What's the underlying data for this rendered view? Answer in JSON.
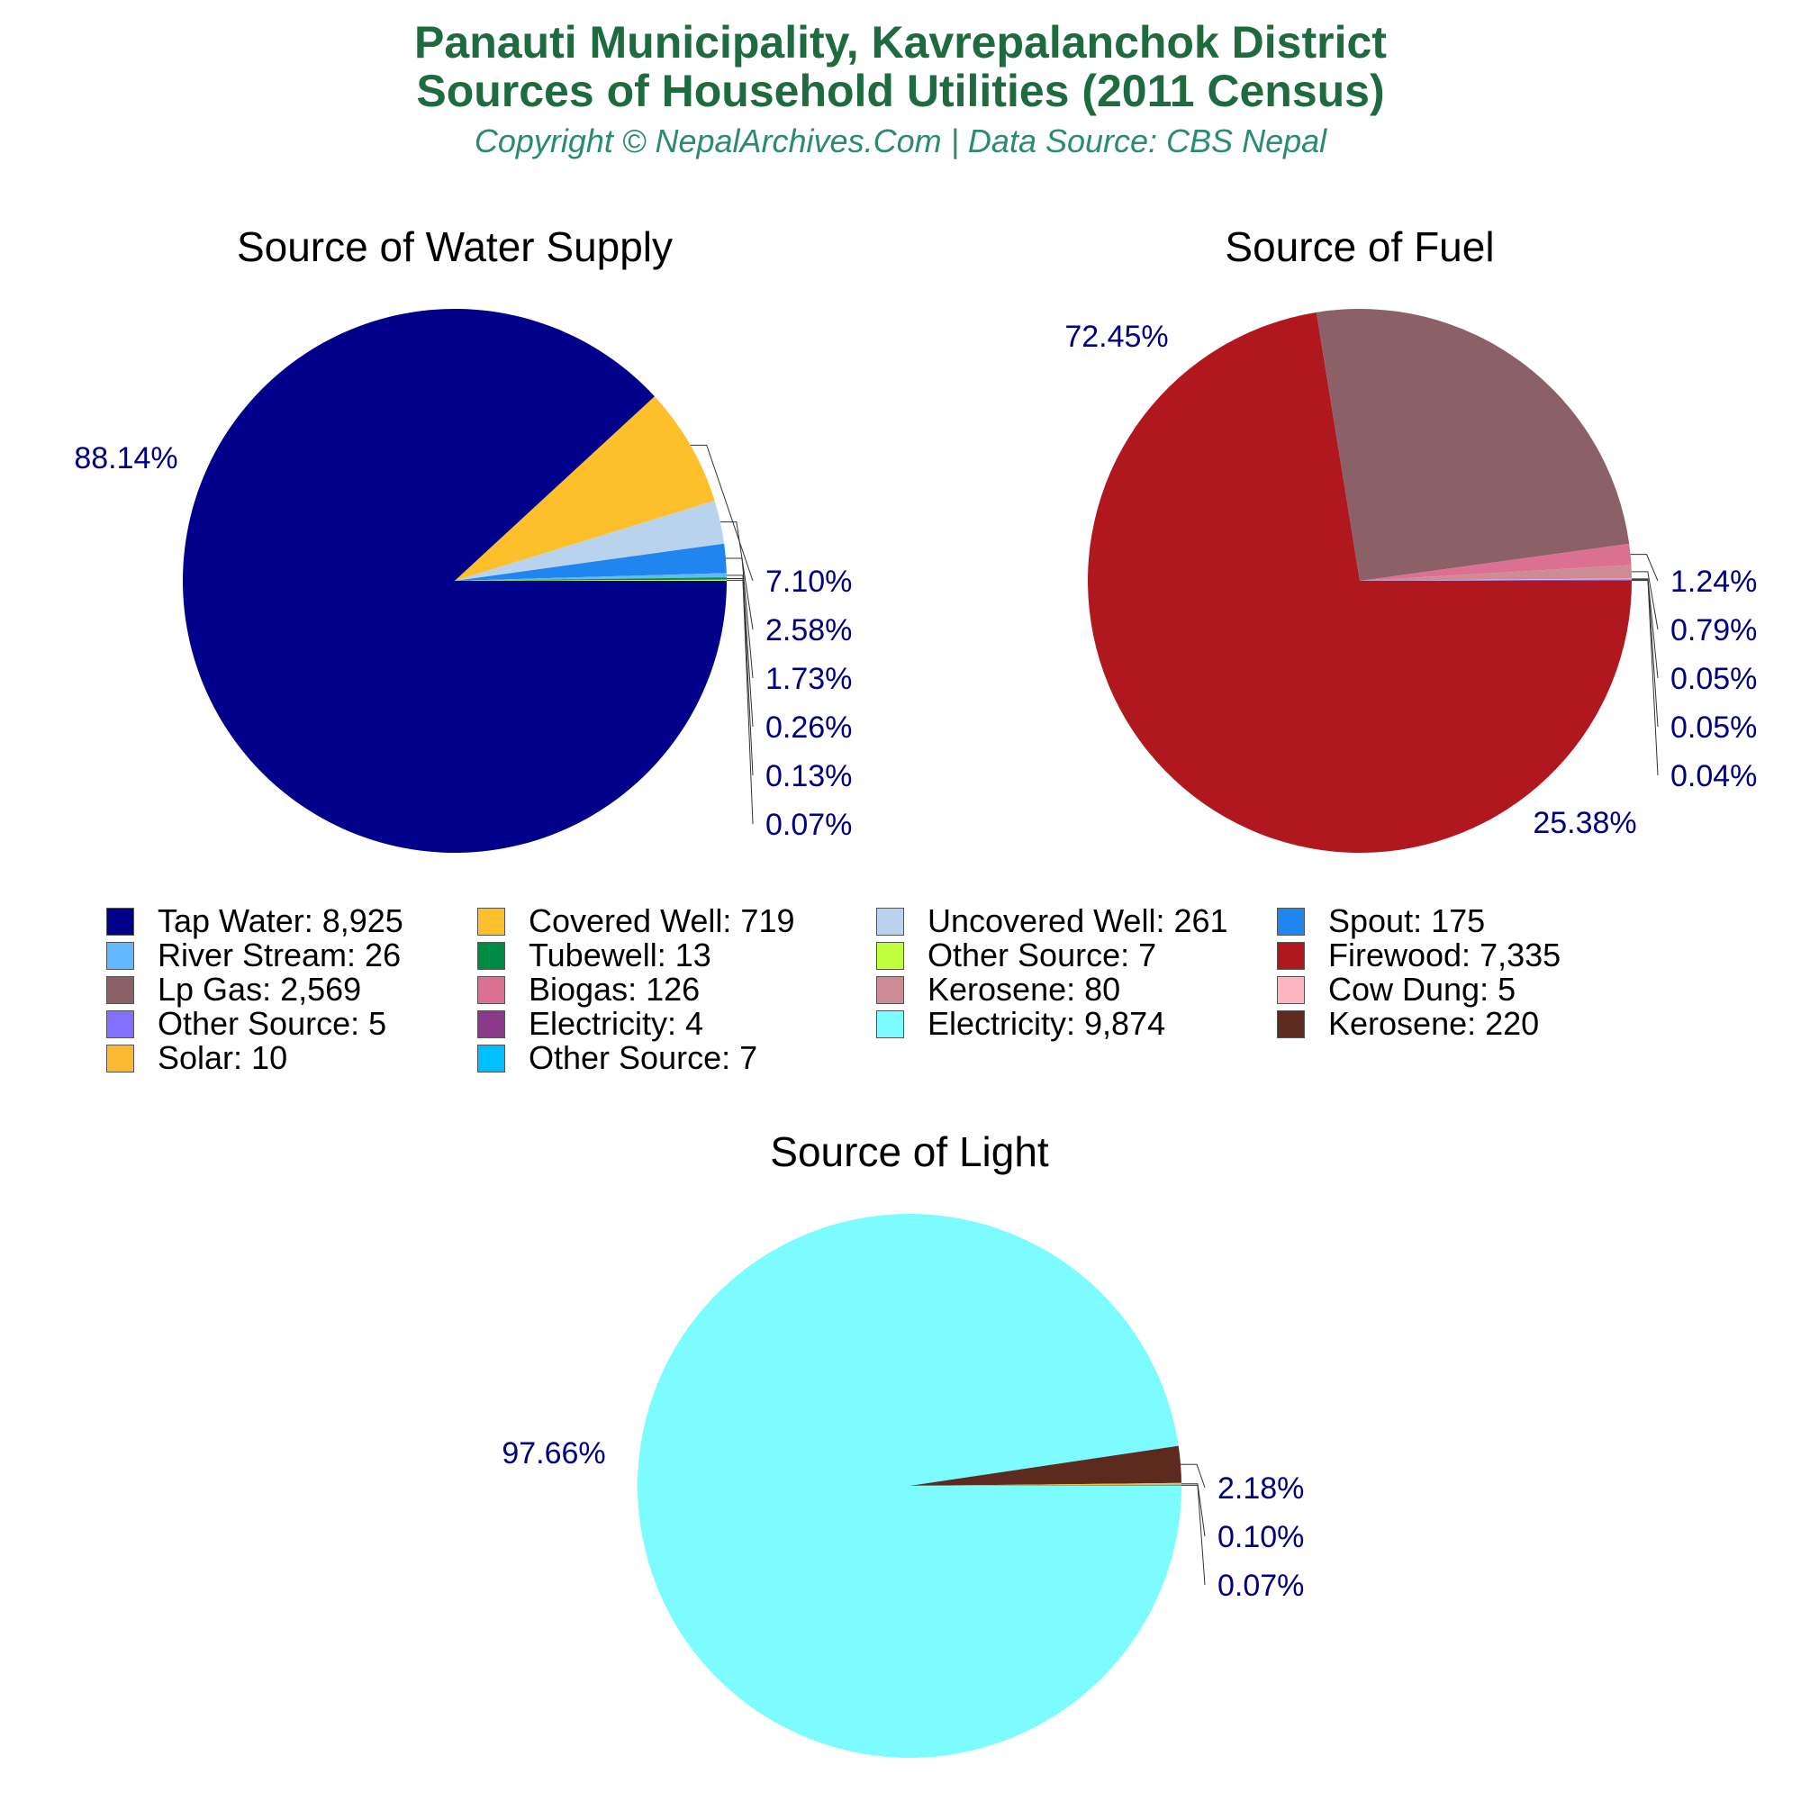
{
  "header": {
    "title_line1": "Panauti Municipality, Kavrepalanchok District",
    "title_line2": "Sources of Household Utilities (2011 Census)",
    "subtitle": "Copyright © NepalArchives.Com | Data Source: CBS Nepal"
  },
  "colors": {
    "title": "#1e6b3f",
    "subtitle": "#2a8a72",
    "percent_label": "#000080"
  },
  "chart_data": [
    {
      "type": "pie",
      "title": "Source of Water Supply",
      "slices": [
        {
          "label": "Tap Water",
          "value": 8925,
          "percent": "88.14%",
          "color": "#00008b"
        },
        {
          "label": "Covered Well",
          "value": 719,
          "percent": "7.10%",
          "color": "#fec02a"
        },
        {
          "label": "Uncovered Well",
          "value": 261,
          "percent": "2.58%",
          "color": "#b9d3ee"
        },
        {
          "label": "Spout",
          "value": 175,
          "percent": "1.73%",
          "color": "#1e86ee"
        },
        {
          "label": "River Stream",
          "value": 26,
          "percent": "0.26%",
          "color": "#63b8ff"
        },
        {
          "label": "Tubewell",
          "value": 13,
          "percent": "0.13%",
          "color": "#008b45"
        },
        {
          "label": "Other Source",
          "value": 7,
          "percent": "0.07%",
          "color": "#c0ff3e"
        }
      ]
    },
    {
      "type": "pie",
      "title": "Source of Fuel",
      "slices": [
        {
          "label": "Firewood",
          "value": 7335,
          "percent": "72.45%",
          "color": "#b0171f"
        },
        {
          "label": "Lp Gas",
          "value": 2569,
          "percent": "25.38%",
          "color": "#8b6066"
        },
        {
          "label": "Biogas",
          "value": 126,
          "percent": "1.24%",
          "color": "#db7093"
        },
        {
          "label": "Kerosene",
          "value": 80,
          "percent": "0.79%",
          "color": "#cd8c95"
        },
        {
          "label": "Cow Dung",
          "value": 5,
          "percent": "0.05%",
          "color": "#ffb6c1"
        },
        {
          "label": "Other Source",
          "value": 5,
          "percent": "0.05%",
          "color": "#8470ff"
        },
        {
          "label": "Electricity",
          "value": 4,
          "percent": "0.04%",
          "color": "#8b3a8b"
        }
      ]
    },
    {
      "type": "pie",
      "title": "Source of Light",
      "slices": [
        {
          "label": "Electricity",
          "value": 9874,
          "percent": "97.66%",
          "color": "#7cfcff"
        },
        {
          "label": "Kerosene",
          "value": 220,
          "percent": "2.18%",
          "color": "#5c2a1e"
        },
        {
          "label": "Solar",
          "value": 10,
          "percent": "0.10%",
          "color": "#fbb934"
        },
        {
          "label": "Other Source",
          "value": 7,
          "percent": "0.07%",
          "color": "#00bfff"
        }
      ]
    }
  ],
  "legend": [
    {
      "text": "Tap Water: 8,925",
      "color": "#00008b"
    },
    {
      "text": "Covered Well: 719",
      "color": "#fec02a"
    },
    {
      "text": "Uncovered Well: 261",
      "color": "#b9d3ee"
    },
    {
      "text": "Spout: 175",
      "color": "#1e86ee"
    },
    {
      "text": "River Stream: 26",
      "color": "#63b8ff"
    },
    {
      "text": "Tubewell: 13",
      "color": "#008b45"
    },
    {
      "text": "Other Source: 7",
      "color": "#c0ff3e"
    },
    {
      "text": "Firewood: 7,335",
      "color": "#b0171f"
    },
    {
      "text": "Lp Gas: 2,569",
      "color": "#8b6066"
    },
    {
      "text": "Biogas: 126",
      "color": "#db7093"
    },
    {
      "text": "Kerosene: 80",
      "color": "#cd8c95"
    },
    {
      "text": "Cow Dung: 5",
      "color": "#ffb6c1"
    },
    {
      "text": "Other Source: 5",
      "color": "#8470ff"
    },
    {
      "text": "Electricity: 4",
      "color": "#8b3a8b"
    },
    {
      "text": "Electricity: 9,874",
      "color": "#7cfcff"
    },
    {
      "text": "Kerosene: 220",
      "color": "#5c2a1e"
    },
    {
      "text": "Solar: 10",
      "color": "#fbb934"
    },
    {
      "text": "Other Source: 7",
      "color": "#00bfff"
    }
  ]
}
